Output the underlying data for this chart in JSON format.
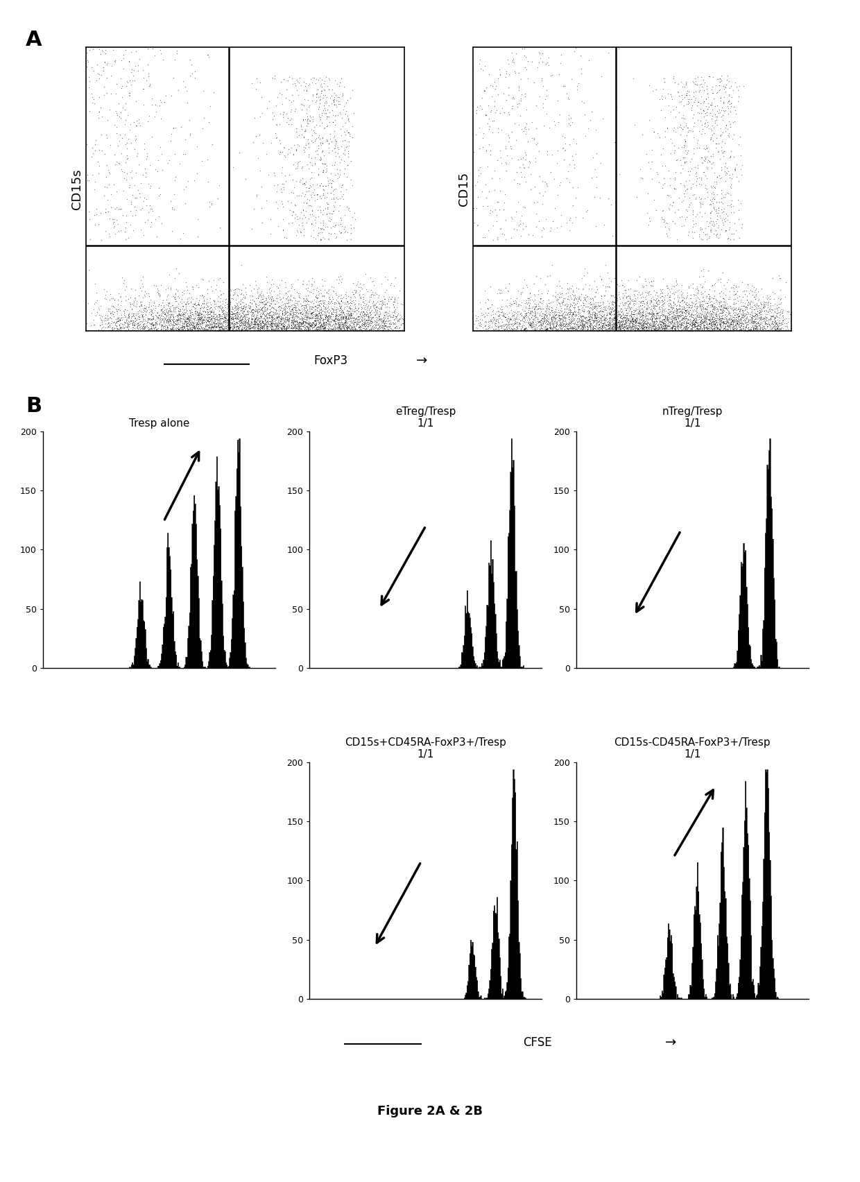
{
  "panel_A_label": "A",
  "panel_B_label": "B",
  "scatter_ylabel1": "CD15s",
  "scatter_ylabel2": "CD15",
  "scatter_xlabel": "FoxP3",
  "hist_title0": "Tresp alone",
  "hist_title1": "eTreg/Tresp\n1/1",
  "hist_title2": "nTreg/Tresp\n1/1",
  "hist_title3": "CD15s+CD45RA-FoxP3+/Tresp\n1/1",
  "hist_title4": "CD15s-CD45RA-FoxP3+/Tresp\n1/1",
  "cfse_label": "CFSE",
  "figure_label": "Figure 2A & 2B",
  "bg_color": "#ffffff"
}
